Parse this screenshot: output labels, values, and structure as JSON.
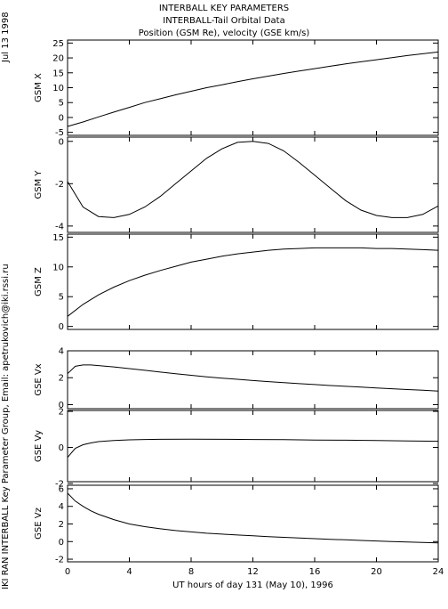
{
  "header": {
    "lines": [
      "INTERBALL KEY PARAMETERS",
      "INTERBALL-Tail Orbital Data",
      "Position (GSM Re), velocity (GSE km/s)"
    ]
  },
  "side": {
    "date": "Jul 13 1998",
    "credit": "IKI RAN INTERBALL Key Parameter Group, Email: apetrukovich@iki.rssi.ru"
  },
  "chart_data": {
    "type": "line",
    "xlabel": "UT hours of day 131 (May 10), 1996",
    "xlim": [
      0,
      24
    ],
    "xticks": [
      0,
      4,
      8,
      12,
      16,
      20,
      24
    ],
    "panels": [
      {
        "ylabel": "GSM X",
        "ylim": [
          -6,
          26
        ],
        "yticks": [
          -5,
          0,
          5,
          10,
          15,
          20,
          25
        ],
        "x": [
          0,
          1,
          2,
          3,
          4,
          5,
          6,
          7,
          8,
          9,
          10,
          11,
          12,
          13,
          14,
          15,
          16,
          17,
          18,
          19,
          20,
          21,
          22,
          23,
          24
        ],
        "y": [
          -3.0,
          -1.5,
          0.2,
          1.8,
          3.4,
          5.0,
          6.3,
          7.6,
          8.8,
          10.0,
          11.0,
          12.0,
          13.0,
          13.9,
          14.8,
          15.6,
          16.4,
          17.2,
          18.0,
          18.7,
          19.4,
          20.1,
          20.8,
          21.4,
          22.0
        ]
      },
      {
        "ylabel": "GSM Y",
        "ylim": [
          -4.3,
          0.2
        ],
        "yticks": [
          0,
          -2,
          -4
        ],
        "x": [
          0,
          1,
          2,
          3,
          4,
          5,
          6,
          7,
          8,
          9,
          10,
          11,
          12,
          13,
          14,
          15,
          16,
          17,
          18,
          19,
          20,
          21,
          22,
          23,
          24
        ],
        "y": [
          -1.9,
          -3.1,
          -3.55,
          -3.6,
          -3.45,
          -3.1,
          -2.6,
          -2.0,
          -1.4,
          -0.8,
          -0.35,
          -0.05,
          0.0,
          -0.1,
          -0.45,
          -1.0,
          -1.6,
          -2.2,
          -2.8,
          -3.25,
          -3.5,
          -3.6,
          -3.6,
          -3.45,
          -3.05
        ]
      },
      {
        "ylabel": "GSM Z",
        "ylim": [
          -0.5,
          15.5
        ],
        "yticks": [
          0,
          5,
          10,
          15
        ],
        "x": [
          0,
          1,
          2,
          3,
          4,
          5,
          6,
          7,
          8,
          9,
          10,
          11,
          12,
          13,
          14,
          15,
          16,
          17,
          18,
          19,
          20,
          21,
          22,
          23,
          24
        ],
        "y": [
          1.7,
          3.7,
          5.3,
          6.6,
          7.7,
          8.6,
          9.4,
          10.1,
          10.8,
          11.3,
          11.8,
          12.2,
          12.5,
          12.8,
          13.0,
          13.1,
          13.2,
          13.2,
          13.2,
          13.2,
          13.1,
          13.1,
          13.0,
          12.9,
          12.8
        ]
      },
      {
        "ylabel": "GSE Vx",
        "ylim": [
          -0.3,
          4
        ],
        "yticks": [
          0,
          2,
          4
        ],
        "x": [
          0,
          0.5,
          1,
          1.5,
          2,
          3,
          4,
          5,
          6,
          7,
          8,
          9,
          10,
          11,
          12,
          13,
          14,
          15,
          16,
          17,
          18,
          19,
          20,
          21,
          22,
          23,
          24
        ],
        "y": [
          2.3,
          2.85,
          2.95,
          2.95,
          2.9,
          2.8,
          2.68,
          2.55,
          2.42,
          2.3,
          2.18,
          2.07,
          1.97,
          1.88,
          1.79,
          1.71,
          1.63,
          1.56,
          1.49,
          1.42,
          1.36,
          1.3,
          1.24,
          1.18,
          1.12,
          1.07,
          1.0
        ]
      },
      {
        "ylabel": "GSE Vy",
        "ylim": [
          -1.9,
          2.05
        ],
        "yticks": [
          -2,
          0,
          2
        ],
        "x": [
          0,
          0.5,
          1,
          1.5,
          2,
          3,
          4,
          5,
          6,
          8,
          10,
          12,
          14,
          16,
          18,
          20,
          22,
          24
        ],
        "y": [
          -0.55,
          -0.05,
          0.15,
          0.25,
          0.32,
          0.38,
          0.42,
          0.44,
          0.45,
          0.46,
          0.45,
          0.44,
          0.43,
          0.41,
          0.4,
          0.38,
          0.36,
          0.34
        ]
      },
      {
        "ylabel": "GSE Vz",
        "ylim": [
          -2.3,
          6.4
        ],
        "yticks": [
          -2,
          0,
          2,
          4,
          6
        ],
        "x": [
          0,
          0.5,
          1,
          1.5,
          2,
          3,
          4,
          5,
          6,
          7,
          8,
          9,
          10,
          11,
          12,
          13,
          14,
          15,
          16,
          17,
          18,
          19,
          20,
          21,
          22,
          23,
          24
        ],
        "y": [
          5.5,
          4.6,
          4.0,
          3.5,
          3.1,
          2.5,
          2.0,
          1.7,
          1.45,
          1.25,
          1.1,
          0.95,
          0.85,
          0.75,
          0.65,
          0.55,
          0.48,
          0.4,
          0.33,
          0.26,
          0.2,
          0.13,
          0.07,
          0.01,
          -0.05,
          -0.1,
          -0.15
        ]
      }
    ]
  }
}
